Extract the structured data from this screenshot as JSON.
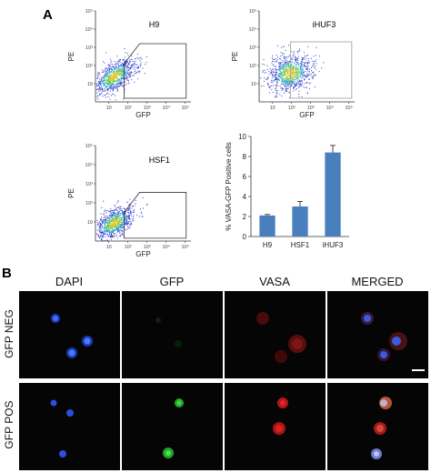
{
  "panel_a_label": "A",
  "panel_b_label": "B",
  "flow_plots": [
    {
      "sample": "H9",
      "xlabel": "GFP",
      "ylabel": "PE",
      "gate": true
    },
    {
      "sample": "iHUF3",
      "xlabel": "GFP",
      "ylabel": "PE",
      "gate": true
    },
    {
      "sample": "HSF1",
      "xlabel": "GFP",
      "ylabel": "PE",
      "gate": true
    }
  ],
  "flow_axis_ticks": [
    "10",
    "10²",
    "10³",
    "10⁴",
    "10⁵"
  ],
  "chart_data": {
    "type": "bar",
    "categories": [
      "H9",
      "HSF1",
      "iHUF3"
    ],
    "values": [
      2.1,
      3.0,
      8.4
    ],
    "errors": [
      0.1,
      0.5,
      0.7
    ],
    "ylabel": "% VASA-GFP Positive cells",
    "xlabel": "",
    "ylim": [
      0,
      10
    ],
    "yticks": [
      0,
      2,
      4,
      6,
      8,
      10
    ],
    "bar_color": "#4a7fbd",
    "grid": false
  },
  "micrographs": {
    "columns": [
      "DAPI",
      "GFP",
      "VASA",
      "MERGED"
    ],
    "rows": [
      "GFP NEG",
      "GFP POS"
    ]
  }
}
